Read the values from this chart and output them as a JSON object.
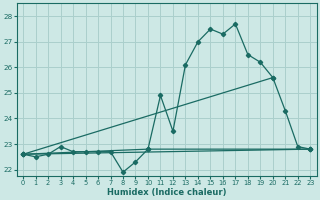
{
  "xlabel": "Humidex (Indice chaleur)",
  "bg_color": "#cde8e5",
  "grid_color": "#aacfcc",
  "line_color": "#1a6b63",
  "xlim": [
    -0.5,
    23.5
  ],
  "ylim": [
    21.75,
    28.5
  ],
  "yticks": [
    22,
    23,
    24,
    25,
    26,
    27,
    28
  ],
  "xticks": [
    0,
    1,
    2,
    3,
    4,
    5,
    6,
    7,
    8,
    9,
    10,
    11,
    12,
    13,
    14,
    15,
    16,
    17,
    18,
    19,
    20,
    21,
    22,
    23
  ],
  "main_x": [
    0,
    1,
    2,
    3,
    4,
    5,
    6,
    7,
    8,
    9,
    10,
    11,
    12,
    13,
    14,
    15,
    16,
    17,
    18,
    19,
    20,
    21,
    22,
    23
  ],
  "main_y": [
    22.6,
    22.5,
    22.6,
    22.9,
    22.7,
    22.7,
    22.7,
    22.7,
    21.9,
    22.3,
    22.8,
    24.9,
    23.5,
    26.1,
    27.0,
    27.5,
    27.3,
    27.7,
    26.5,
    26.2,
    25.6,
    24.3,
    22.9,
    22.8
  ],
  "line1_x": [
    0,
    23
  ],
  "line1_y": [
    22.6,
    22.8
  ],
  "line2_x": [
    0,
    20
  ],
  "line2_y": [
    22.6,
    25.6
  ],
  "line3_x": [
    0,
    10,
    23
  ],
  "line3_y": [
    22.6,
    22.8,
    22.8
  ]
}
